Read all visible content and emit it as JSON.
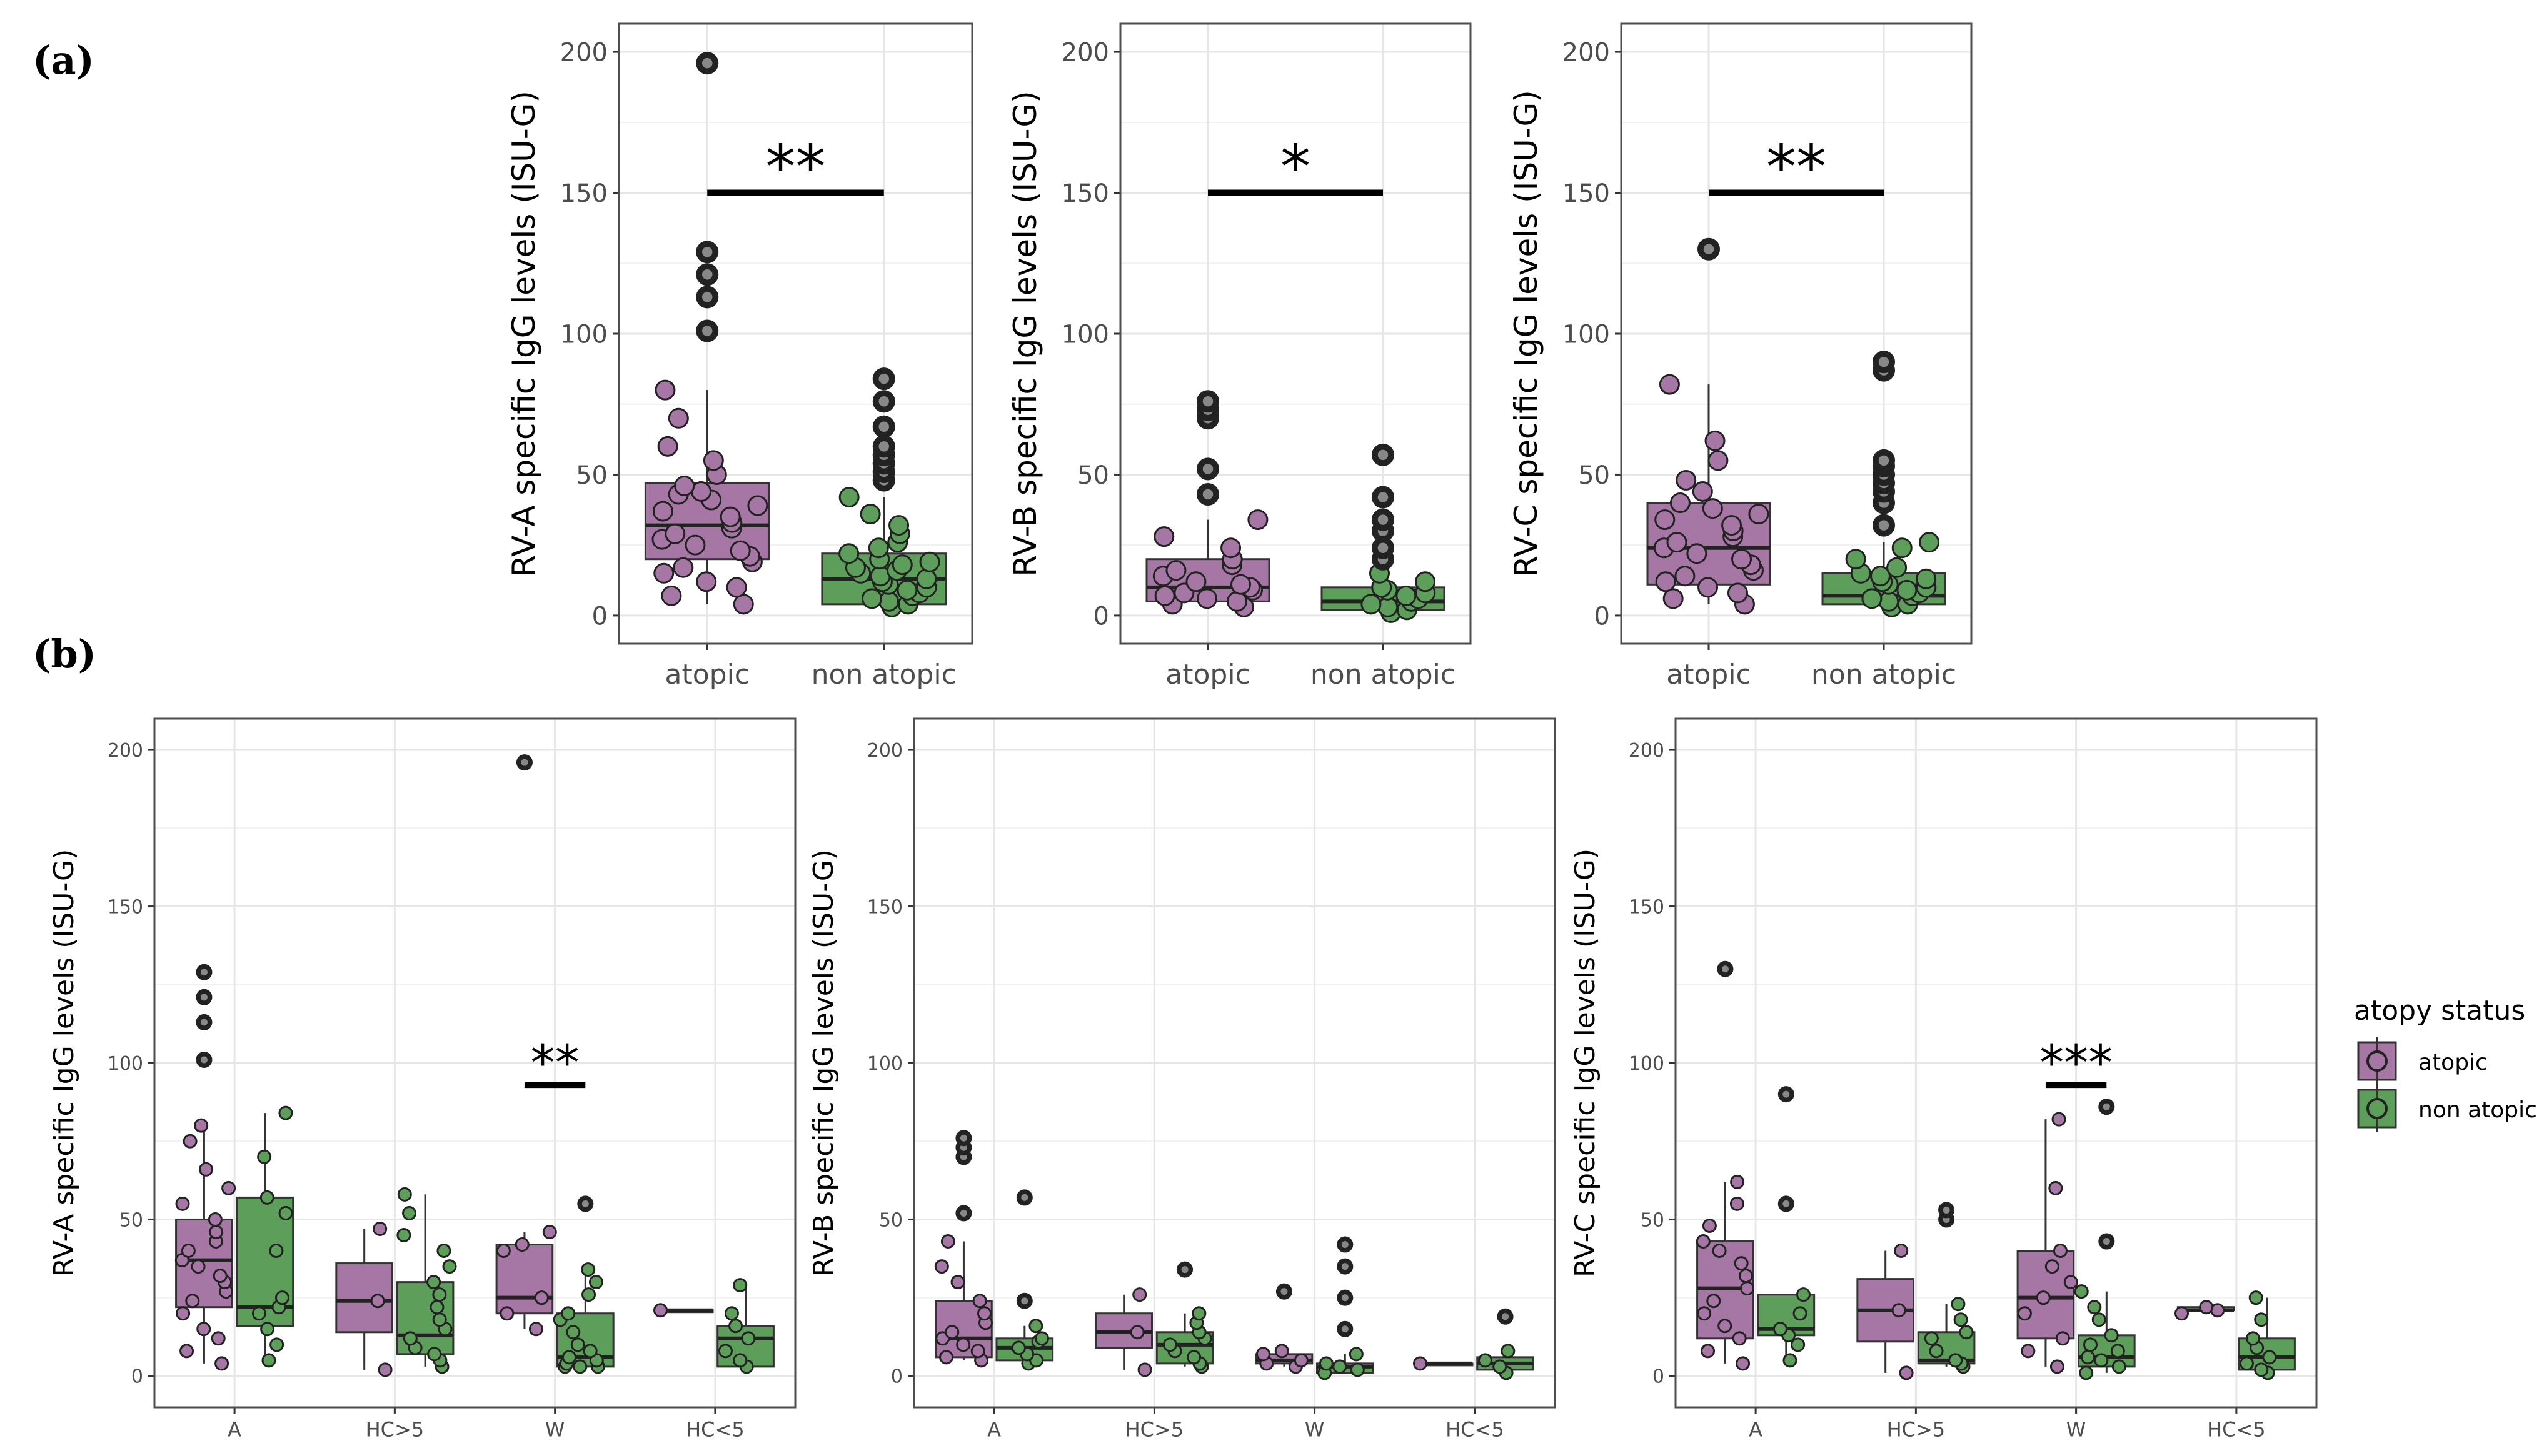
{
  "figure": {
    "panel_a_label": "(a)",
    "panel_b_label": "(b)"
  },
  "legend": {
    "title": "atopy status",
    "items": [
      "atopic",
      "non atopic"
    ]
  },
  "colors": {
    "atopic": "#a677a5",
    "non_atopic": "#5c9e5a",
    "grid": "#e6e6e6",
    "frame": "#4d4d4d"
  },
  "chart_data": [
    {
      "id": "a1",
      "type": "box",
      "ylabel": "RV-A specific IgG levels (ISU-G)",
      "ylim": [
        -10,
        210
      ],
      "yticks": [
        0,
        50,
        100,
        150,
        200
      ],
      "categories": [
        "atopic",
        "non atopic"
      ],
      "boxes": [
        {
          "group": "atopic",
          "q1": 20,
          "median": 32,
          "q3": 47,
          "wlo": 4,
          "whi": 80,
          "points": [
            4,
            7,
            10,
            12,
            15,
            17,
            19,
            21,
            23,
            25,
            27,
            29,
            31,
            33,
            35,
            37,
            39,
            41,
            43,
            44,
            46,
            50,
            55,
            60,
            70,
            80
          ],
          "outliers": [
            101,
            113,
            121,
            129,
            196
          ]
        },
        {
          "group": "non atopic",
          "q1": 4,
          "median": 13,
          "q3": 22,
          "wlo": 3,
          "whi": 42,
          "points": [
            3,
            4,
            5,
            6,
            7,
            8,
            9,
            10,
            11,
            12,
            13,
            14,
            15,
            16,
            17,
            18,
            19,
            20,
            22,
            24,
            26,
            29,
            32,
            36,
            42
          ],
          "outliers": [
            48,
            51,
            54,
            57,
            60,
            67,
            76,
            84
          ]
        }
      ],
      "annotation": {
        "text": "**",
        "from": "atopic",
        "to": "non atopic",
        "y": 150
      }
    },
    {
      "id": "a2",
      "type": "box",
      "ylabel": "RV-B specific IgG levels (ISU-G)",
      "ylim": [
        -10,
        210
      ],
      "yticks": [
        0,
        50,
        100,
        150,
        200
      ],
      "categories": [
        "atopic",
        "non atopic"
      ],
      "boxes": [
        {
          "group": "atopic",
          "q1": 5,
          "median": 10,
          "q3": 20,
          "wlo": 3,
          "whi": 34,
          "points": [
            3,
            4,
            5,
            6,
            7,
            8,
            9,
            10,
            11,
            12,
            14,
            16,
            18,
            20,
            24,
            28,
            34
          ],
          "outliers": [
            43,
            52,
            70,
            73,
            76
          ]
        },
        {
          "group": "non atopic",
          "q1": 2,
          "median": 5,
          "q3": 10,
          "wlo": 1,
          "whi": 15,
          "points": [
            1,
            2,
            3,
            4,
            5,
            6,
            7,
            8,
            9,
            10,
            12,
            15
          ],
          "outliers": [
            20,
            24,
            30,
            34,
            42,
            57
          ]
        }
      ],
      "annotation": {
        "text": "*",
        "from": "atopic",
        "to": "non atopic",
        "y": 150
      }
    },
    {
      "id": "a3",
      "type": "box",
      "ylabel": "RV-C specific IgG levels (ISU-G)",
      "ylim": [
        -10,
        210
      ],
      "yticks": [
        0,
        50,
        100,
        150,
        200
      ],
      "categories": [
        "atopic",
        "non atopic"
      ],
      "boxes": [
        {
          "group": "atopic",
          "q1": 11,
          "median": 24,
          "q3": 40,
          "wlo": 4,
          "whi": 82,
          "points": [
            4,
            6,
            8,
            10,
            12,
            14,
            16,
            18,
            20,
            22,
            24,
            26,
            28,
            30,
            32,
            34,
            36,
            38,
            40,
            44,
            48,
            55,
            62,
            82
          ],
          "outliers": [
            130
          ]
        },
        {
          "group": "non atopic",
          "q1": 4,
          "median": 7,
          "q3": 15,
          "wlo": 3,
          "whi": 26,
          "points": [
            3,
            4,
            5,
            6,
            7,
            8,
            9,
            10,
            11,
            12,
            13,
            14,
            15,
            17,
            20,
            24,
            26
          ],
          "outliers": [
            32,
            40,
            44,
            47,
            50,
            53,
            55,
            87,
            90
          ]
        }
      ],
      "annotation": {
        "text": "**",
        "from": "atopic",
        "to": "non atopic",
        "y": 150
      }
    },
    {
      "id": "b1",
      "type": "box",
      "ylabel": "RV-A specific IgG levels (ISU-G)",
      "ylim": [
        -10,
        210
      ],
      "yticks": [
        0,
        50,
        100,
        150,
        200
      ],
      "categories": [
        "A",
        "HC>5",
        "W",
        "HC<5"
      ],
      "boxes": [
        {
          "category": "A",
          "group": "atopic",
          "q1": 22,
          "median": 37,
          "q3": 50,
          "wlo": 4,
          "whi": 80,
          "points": [
            4,
            8,
            12,
            15,
            20,
            24,
            27,
            30,
            32,
            35,
            37,
            40,
            43,
            46,
            50,
            55,
            60,
            66,
            75,
            80
          ],
          "outliers": [
            101,
            113,
            121,
            129
          ]
        },
        {
          "category": "A",
          "group": "non atopic",
          "q1": 16,
          "median": 22,
          "q3": 57,
          "wlo": 5,
          "whi": 84,
          "points": [
            5,
            10,
            15,
            20,
            22,
            25,
            40,
            52,
            57,
            70,
            84
          ],
          "outliers": []
        },
        {
          "category": "HC>5",
          "group": "atopic",
          "q1": 14,
          "median": 24,
          "q3": 36,
          "wlo": 2,
          "whi": 47,
          "points": [
            2,
            24,
            47
          ],
          "outliers": []
        },
        {
          "category": "HC>5",
          "group": "non atopic",
          "q1": 7,
          "median": 13,
          "q3": 30,
          "wlo": 3,
          "whi": 58,
          "points": [
            3,
            5,
            7,
            9,
            12,
            15,
            18,
            22,
            26,
            30,
            35,
            40,
            45,
            52,
            58
          ],
          "outliers": []
        },
        {
          "category": "W",
          "group": "atopic",
          "q1": 20,
          "median": 25,
          "q3": 42,
          "wlo": 15,
          "whi": 46,
          "points": [
            15,
            20,
            25,
            40,
            42,
            46
          ],
          "outliers": [
            196
          ]
        },
        {
          "category": "W",
          "group": "non atopic",
          "q1": 3,
          "median": 6,
          "q3": 20,
          "wlo": 3,
          "whi": 34,
          "points": [
            3,
            3,
            3,
            4,
            5,
            6,
            8,
            10,
            14,
            18,
            20,
            26,
            30,
            34
          ],
          "outliers": [
            55
          ]
        },
        {
          "category": "HC<5",
          "group": "atopic",
          "q1": 21,
          "median": 21,
          "q3": 21,
          "wlo": 21,
          "whi": 21,
          "points": [
            21
          ],
          "outliers": []
        },
        {
          "category": "HC<5",
          "group": "non atopic",
          "q1": 3,
          "median": 12,
          "q3": 16,
          "wlo": 3,
          "whi": 29,
          "points": [
            3,
            5,
            8,
            12,
            16,
            20,
            29
          ],
          "outliers": []
        }
      ],
      "annotation": {
        "text": "**",
        "category": "W",
        "y": 93
      }
    },
    {
      "id": "b2",
      "type": "box",
      "ylabel": "RV-B specific IgG levels (ISU-G)",
      "ylim": [
        -10,
        210
      ],
      "yticks": [
        0,
        50,
        100,
        150,
        200
      ],
      "categories": [
        "A",
        "HC>5",
        "W",
        "HC<5"
      ],
      "boxes": [
        {
          "category": "A",
          "group": "atopic",
          "q1": 6,
          "median": 12,
          "q3": 24,
          "wlo": 5,
          "whi": 43,
          "points": [
            5,
            6,
            8,
            10,
            12,
            14,
            17,
            20,
            24,
            30,
            35,
            43
          ],
          "outliers": [
            52,
            70,
            73,
            76
          ]
        },
        {
          "category": "A",
          "group": "non atopic",
          "q1": 5,
          "median": 9,
          "q3": 12,
          "wlo": 4,
          "whi": 16,
          "points": [
            4,
            5,
            7,
            9,
            11,
            12,
            16
          ],
          "outliers": [
            24,
            57
          ]
        },
        {
          "category": "HC>5",
          "group": "atopic",
          "q1": 9,
          "median": 14,
          "q3": 20,
          "wlo": 2,
          "whi": 26,
          "points": [
            2,
            14,
            26
          ],
          "outliers": []
        },
        {
          "category": "HC>5",
          "group": "non atopic",
          "q1": 4,
          "median": 10,
          "q3": 14,
          "wlo": 3,
          "whi": 20,
          "points": [
            3,
            4,
            6,
            8,
            10,
            12,
            14,
            17,
            20
          ],
          "outliers": [
            34
          ]
        },
        {
          "category": "W",
          "group": "atopic",
          "q1": 4,
          "median": 5,
          "q3": 7,
          "wlo": 3,
          "whi": 8,
          "points": [
            3,
            4,
            5,
            7,
            8
          ],
          "outliers": [
            27
          ]
        },
        {
          "category": "W",
          "group": "non atopic",
          "q1": 1,
          "median": 3,
          "q3": 4,
          "wlo": 1,
          "whi": 7,
          "points": [
            1,
            2,
            3,
            4,
            7
          ],
          "outliers": [
            15,
            25,
            35,
            42
          ]
        },
        {
          "category": "HC<5",
          "group": "atopic",
          "q1": 4,
          "median": 4,
          "q3": 4,
          "wlo": 4,
          "whi": 4,
          "points": [
            4
          ],
          "outliers": []
        },
        {
          "category": "HC<5",
          "group": "non atopic",
          "q1": 2,
          "median": 4,
          "q3": 6,
          "wlo": 1,
          "whi": 8,
          "points": [
            1,
            3,
            5,
            8
          ],
          "outliers": [
            19
          ]
        }
      ]
    },
    {
      "id": "b3",
      "type": "box",
      "ylabel": "RV-C specific IgG levels (ISU-G)",
      "ylim": [
        -10,
        210
      ],
      "yticks": [
        0,
        50,
        100,
        150,
        200
      ],
      "categories": [
        "A",
        "HC>5",
        "W",
        "HC<5"
      ],
      "boxes": [
        {
          "category": "A",
          "group": "atopic",
          "q1": 12,
          "median": 28,
          "q3": 43,
          "wlo": 4,
          "whi": 62,
          "points": [
            4,
            8,
            12,
            16,
            20,
            24,
            28,
            32,
            36,
            40,
            43,
            48,
            55,
            62
          ],
          "outliers": [
            130
          ]
        },
        {
          "category": "A",
          "group": "non atopic",
          "q1": 13,
          "median": 15,
          "q3": 26,
          "wlo": 5,
          "whi": 26,
          "points": [
            5,
            10,
            13,
            15,
            20,
            26
          ],
          "outliers": [
            55,
            90
          ]
        },
        {
          "category": "HC>5",
          "group": "atopic",
          "q1": 11,
          "median": 21,
          "q3": 31,
          "wlo": 1,
          "whi": 40,
          "points": [
            1,
            21,
            40
          ],
          "outliers": []
        },
        {
          "category": "HC>5",
          "group": "non atopic",
          "q1": 4,
          "median": 5,
          "q3": 14,
          "wlo": 3,
          "whi": 23,
          "points": [
            3,
            4,
            5,
            8,
            12,
            14,
            18,
            23
          ],
          "outliers": [
            50,
            53
          ]
        },
        {
          "category": "W",
          "group": "atopic",
          "q1": 12,
          "median": 25,
          "q3": 40,
          "wlo": 3,
          "whi": 82,
          "points": [
            3,
            8,
            12,
            20,
            25,
            30,
            35,
            40,
            60,
            82
          ],
          "outliers": []
        },
        {
          "category": "W",
          "group": "non atopic",
          "q1": 3,
          "median": 6,
          "q3": 13,
          "wlo": 1,
          "whi": 27,
          "points": [
            1,
            3,
            5,
            6,
            8,
            10,
            13,
            18,
            22,
            27
          ],
          "outliers": [
            43,
            86
          ]
        },
        {
          "category": "HC<5",
          "group": "atopic",
          "q1": 21,
          "median": 21,
          "q3": 22,
          "wlo": 20,
          "whi": 22,
          "points": [
            20,
            21,
            22
          ],
          "outliers": []
        },
        {
          "category": "HC<5",
          "group": "non atopic",
          "q1": 2,
          "median": 6,
          "q3": 12,
          "wlo": 1,
          "whi": 25,
          "points": [
            1,
            2,
            4,
            6,
            9,
            12,
            18,
            25
          ],
          "outliers": []
        }
      ],
      "annotation": {
        "text": "***",
        "category": "W",
        "y": 93
      }
    }
  ]
}
